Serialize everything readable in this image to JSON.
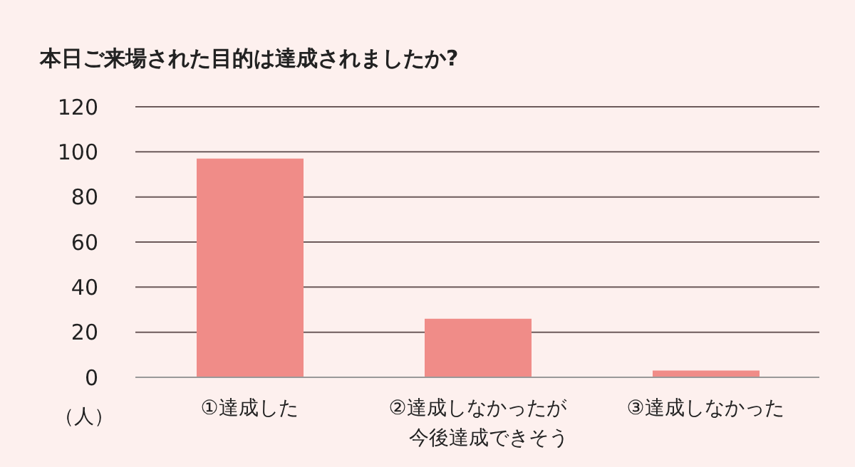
{
  "chart_data": {
    "type": "bar",
    "title": "本日ご来場された目的は達成されましたか?",
    "ylabel": "（人）",
    "categories": [
      "①達成した",
      "②達成しなかったが今後達成できそう",
      "③達成しなかった"
    ],
    "values": [
      97,
      26,
      3
    ],
    "color": "#f08c88",
    "ylim": [
      0,
      120
    ],
    "yticks": [
      0,
      20,
      40,
      60,
      80,
      100,
      120
    ],
    "grid": "y",
    "legend": false
  }
}
